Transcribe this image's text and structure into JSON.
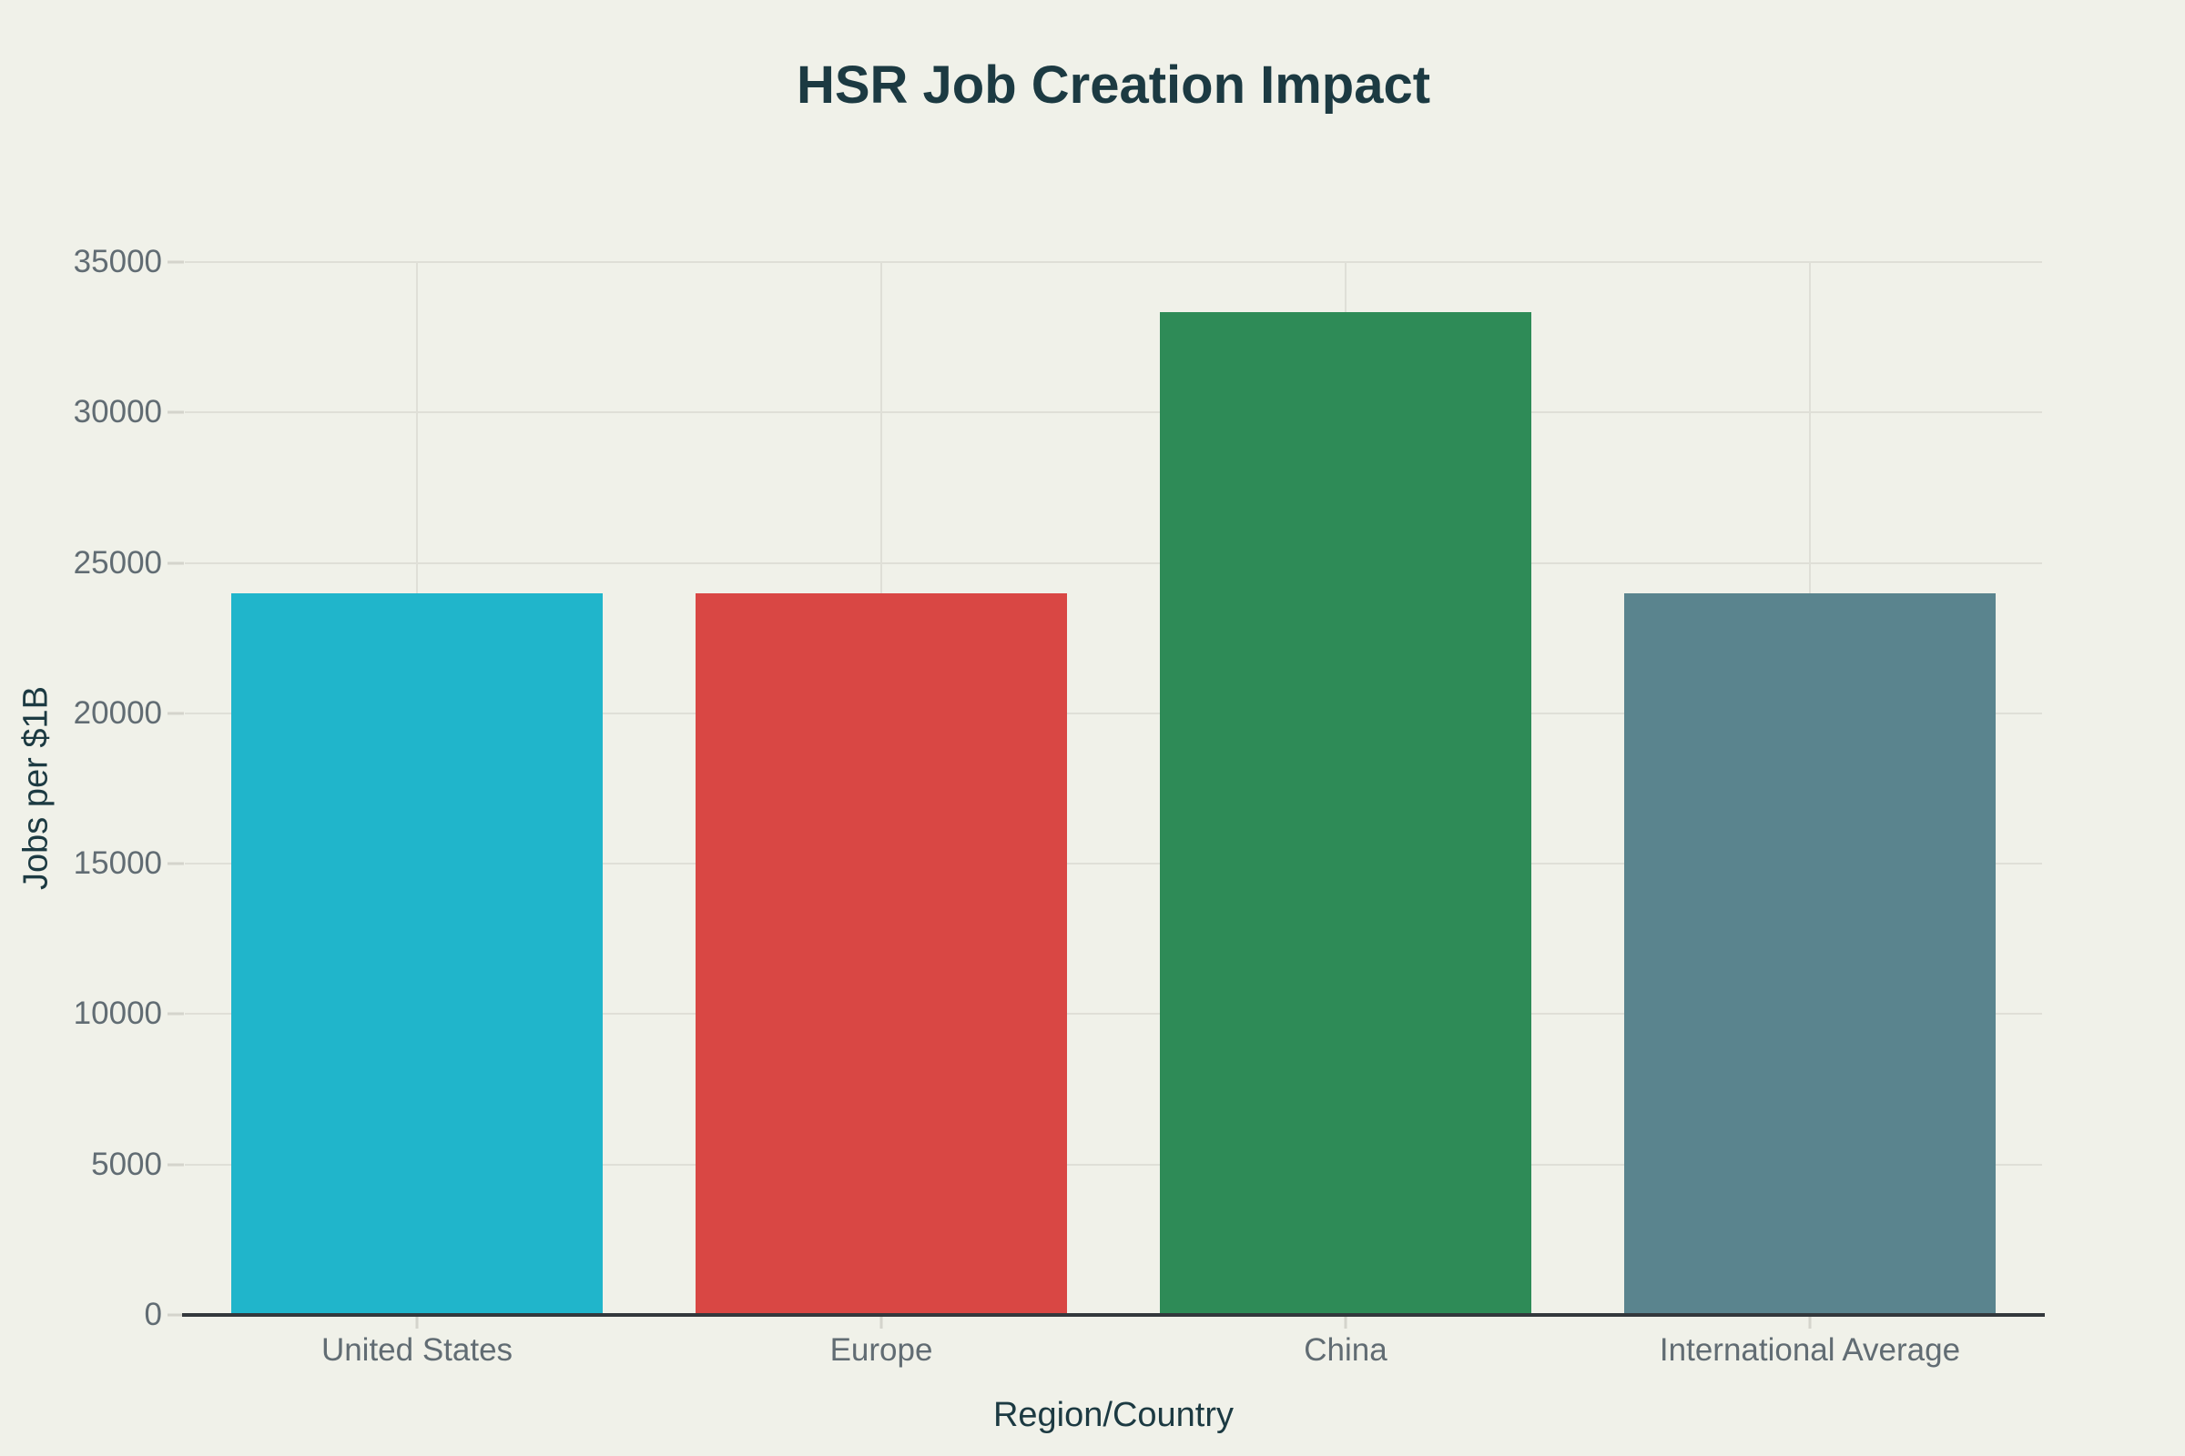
{
  "page": {
    "background_color": "#F0F1E9"
  },
  "chart_data": {
    "type": "bar",
    "title": "HSR Job Creation Impact",
    "xlabel": "Region/Country",
    "ylabel": "Jobs per $1B",
    "categories": [
      "United States",
      "Europe",
      "China",
      "International Average"
    ],
    "values": [
      24000,
      24000,
      33333,
      24000
    ],
    "bar_colors": [
      "#20B5CB",
      "#D94744",
      "#2E8B57",
      "#5A848E"
    ],
    "ylim": [
      0,
      35000
    ],
    "yticks": [
      0,
      5000,
      10000,
      15000,
      20000,
      25000,
      30000,
      35000
    ],
    "grid": {
      "horizontal": true,
      "vertical_at_category_centers": true,
      "gridline_color": "#DFDFD7",
      "tick_mark_color": "#D4D4CC"
    },
    "legend": "none",
    "colors": {
      "title_text": "#1C3A42",
      "axis_title_text": "#1C3A42",
      "tick_label_text": "#616C73",
      "axis_line": "#33383C"
    }
  }
}
